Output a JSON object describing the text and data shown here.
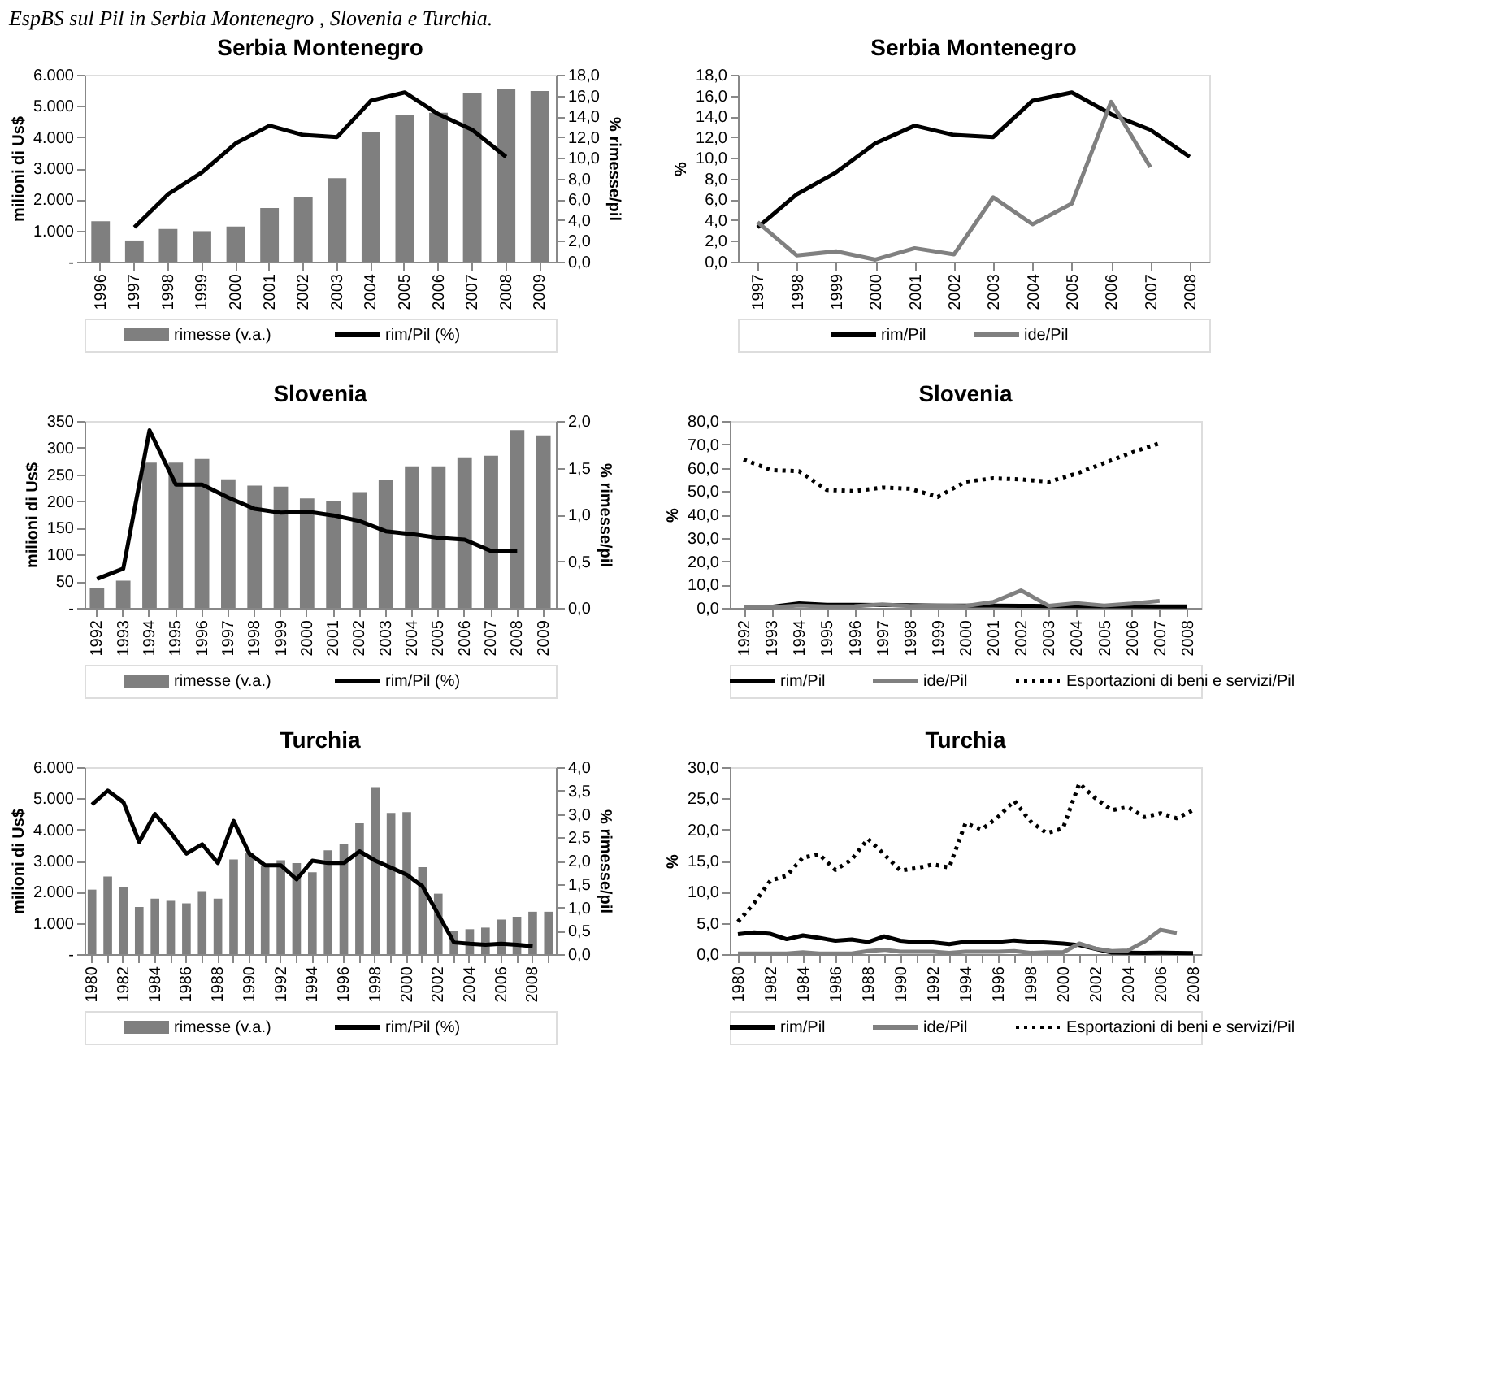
{
  "chart_data": [
    {
      "type": "bar",
      "title": "Serbia Montenegro",
      "ylabel": "milioni di Us$",
      "y2label": "% rimesse/pil",
      "legend": "bottom",
      "annotations": [
        "EspBS sul Pil in Serbia Montenegro , Slovenia e Turchia."
      ],
      "categories": [
        "1996",
        "1997",
        "1998",
        "1999",
        "2000",
        "2001",
        "2002",
        "2003",
        "2004",
        "2005",
        "2006",
        "2007",
        "2008",
        "2009"
      ],
      "ylim": [
        0,
        6000
      ],
      "yticks": [
        {
          "value": 0,
          "label": "-"
        },
        {
          "value": 1000,
          "label": "1.000"
        },
        {
          "value": 2000,
          "label": "2.000"
        },
        {
          "value": 3000,
          "label": "3.000"
        },
        {
          "value": 4000,
          "label": "4.000"
        },
        {
          "value": 5000,
          "label": "5.000"
        },
        {
          "value": 6000,
          "label": "6.000"
        }
      ],
      "y2lim": [
        0,
        18
      ],
      "y2ticks": [
        {
          "value": 0,
          "label": "0,0"
        },
        {
          "value": 2,
          "label": "2,0"
        },
        {
          "value": 4,
          "label": "4,0"
        },
        {
          "value": 6,
          "label": "6,0"
        },
        {
          "value": 8,
          "label": "8,0"
        },
        {
          "value": 10,
          "label": "10,0"
        },
        {
          "value": 12,
          "label": "12,0"
        },
        {
          "value": 14,
          "label": "14,0"
        },
        {
          "value": 16,
          "label": "16,0"
        },
        {
          "value": 18,
          "label": "18,0"
        }
      ],
      "series": [
        {
          "name": "rimesse (v.a.)",
          "type": "bar",
          "color": "#7f7f7f",
          "values": [
            1300,
            680,
            1050,
            980,
            1130,
            1720,
            2090,
            2680,
            4150,
            4700,
            4780,
            5400,
            5550,
            5480
          ]
        },
        {
          "name": "rim/Pil (%)",
          "type": "line",
          "axis": "y2",
          "color": "#000000",
          "values": [
            null,
            3.3,
            6.5,
            8.6,
            11.4,
            13.1,
            12.2,
            12.0,
            15.5,
            16.3,
            14.2,
            12.7,
            10.1,
            null
          ]
        }
      ]
    },
    {
      "type": "line",
      "title": "Serbia Montenegro",
      "ylabel": "%",
      "legend": "bottom",
      "categories": [
        "1997",
        "1998",
        "1999",
        "2000",
        "2001",
        "2002",
        "2003",
        "2004",
        "2005",
        "2006",
        "2007",
        "2008"
      ],
      "ylim": [
        0,
        18
      ],
      "yticks": [
        {
          "value": 0,
          "label": "0,0"
        },
        {
          "value": 2,
          "label": "2,0"
        },
        {
          "value": 4,
          "label": "4,0"
        },
        {
          "value": 6,
          "label": "6,0"
        },
        {
          "value": 8,
          "label": "8,0"
        },
        {
          "value": 10,
          "label": "10,0"
        },
        {
          "value": 12,
          "label": "12,0"
        },
        {
          "value": 14,
          "label": "14,0"
        },
        {
          "value": 16,
          "label": "16,0"
        },
        {
          "value": 18,
          "label": "18,0"
        }
      ],
      "series": [
        {
          "name": "rim/Pil",
          "color": "#000000",
          "values": [
            3.3,
            6.5,
            8.6,
            11.4,
            13.1,
            12.2,
            12.0,
            15.5,
            16.3,
            14.2,
            12.7,
            10.1
          ]
        },
        {
          "name": "ide/Pil",
          "color": "#808080",
          "values": [
            3.8,
            0.6,
            1.0,
            0.2,
            1.3,
            0.7,
            6.2,
            3.6,
            5.6,
            15.4,
            9.1,
            null
          ]
        }
      ]
    },
    {
      "type": "bar",
      "title": "Slovenia",
      "ylabel": "milioni di Us$",
      "y2label": "% rimesse/pil",
      "legend": "bottom",
      "categories": [
        "1992",
        "1993",
        "1994",
        "1995",
        "1996",
        "1997",
        "1998",
        "1999",
        "2000",
        "2001",
        "2002",
        "2003",
        "2004",
        "2005",
        "2006",
        "2007",
        "2008",
        "2009"
      ],
      "ylim": [
        0,
        350
      ],
      "yticks": [
        {
          "value": 0,
          "label": "-"
        },
        50,
        100,
        150,
        200,
        250,
        300,
        350
      ],
      "y2lim": [
        0,
        2
      ],
      "y2ticks": [
        {
          "value": 0,
          "label": "0,0"
        },
        {
          "value": 0.5,
          "label": "0,5"
        },
        {
          "value": 1,
          "label": "1,0"
        },
        {
          "value": 1.5,
          "label": "1,5"
        },
        {
          "value": 2,
          "label": "2,0"
        }
      ],
      "series": [
        {
          "name": "rimesse (v.a.)",
          "type": "bar",
          "color": "#7f7f7f",
          "values": [
            38,
            51,
            272,
            272,
            279,
            241,
            229,
            227,
            205,
            200,
            217,
            239,
            265,
            265,
            282,
            285,
            333,
            323
          ]
        },
        {
          "name": "rim/Pil (%)",
          "type": "line",
          "axis": "y2",
          "color": "#000000",
          "values": [
            0.31,
            0.42,
            1.9,
            1.32,
            1.32,
            1.18,
            1.06,
            1.02,
            1.03,
            0.99,
            0.93,
            0.82,
            0.79,
            0.75,
            0.73,
            0.61,
            0.61,
            null
          ]
        }
      ]
    },
    {
      "type": "line",
      "title": "Slovenia",
      "ylabel": "%",
      "legend": "bottom",
      "categories": [
        "1992",
        "1993",
        "1994",
        "1995",
        "1996",
        "1997",
        "1998",
        "1999",
        "2000",
        "2001",
        "2002",
        "2003",
        "2004",
        "2005",
        "2006",
        "2007",
        "2008"
      ],
      "ylim": [
        0,
        80
      ],
      "yticks": [
        {
          "value": 0,
          "label": "0,0"
        },
        {
          "value": 10,
          "label": "10,0"
        },
        {
          "value": 20,
          "label": "20,0"
        },
        {
          "value": 30,
          "label": "30,0"
        },
        {
          "value": 40,
          "label": "40,0"
        },
        {
          "value": 50,
          "label": "50,0"
        },
        {
          "value": 60,
          "label": "60,0"
        },
        {
          "value": 70,
          "label": "70,0"
        },
        {
          "value": 80,
          "label": "80,0"
        }
      ],
      "series": [
        {
          "name": "rim/Pil",
          "color": "#000000",
          "values": [
            0.3,
            0.4,
            1.9,
            1.3,
            1.3,
            1.2,
            1.1,
            1.0,
            1.0,
            1.0,
            0.9,
            0.8,
            0.8,
            0.7,
            0.7,
            0.6,
            0.6
          ]
        },
        {
          "name": "ide/Pil",
          "color": "#808080",
          "values": [
            0.2,
            0.3,
            1.0,
            0.6,
            0.7,
            1.5,
            0.8,
            1.0,
            0.8,
            2.5,
            7.5,
            0.9,
            2.0,
            1.0,
            1.8,
            3.0,
            null
          ]
        },
        {
          "name": "Esportazioni di beni e servizi/Pil",
          "color": "#000000",
          "line_style": "dotted",
          "values": [
            63.5,
            59,
            58.5,
            50.5,
            50,
            51.5,
            51,
            47.5,
            54,
            55.5,
            55,
            54,
            57.5,
            62,
            66.5,
            70.5,
            null
          ]
        }
      ]
    },
    {
      "type": "bar",
      "title": "Turchia",
      "ylabel": "milioni di Us$",
      "y2label": "% rimesse/pil",
      "legend": "bottom",
      "categories": [
        "1980",
        null,
        "1982",
        null,
        "1984",
        null,
        "1986",
        null,
        "1988",
        null,
        "1990",
        null,
        "1992",
        null,
        "1994",
        null,
        "1996",
        null,
        "1998",
        null,
        "2000",
        null,
        "2002",
        null,
        "2004",
        null,
        "2006",
        null,
        "2008",
        null
      ],
      "ylim": [
        0,
        6000
      ],
      "yticks": [
        {
          "value": 0,
          "label": "-"
        },
        {
          "value": 1000,
          "label": "1.000"
        },
        {
          "value": 2000,
          "label": "2.000"
        },
        {
          "value": 3000,
          "label": "3.000"
        },
        {
          "value": 4000,
          "label": "4.000"
        },
        {
          "value": 5000,
          "label": "5.000"
        },
        {
          "value": 6000,
          "label": "6.000"
        }
      ],
      "y2lim": [
        0,
        4
      ],
      "y2ticks": [
        {
          "value": 0,
          "label": "0,0"
        },
        {
          "value": 0.5,
          "label": "0,5"
        },
        {
          "value": 1,
          "label": "1,0"
        },
        {
          "value": 1.5,
          "label": "1,5"
        },
        {
          "value": 2,
          "label": "2,0"
        },
        {
          "value": 2.5,
          "label": "2,5"
        },
        {
          "value": 3,
          "label": "3,0"
        },
        {
          "value": 3.5,
          "label": "3,5"
        },
        {
          "value": 4,
          "label": "4,0"
        }
      ],
      "series": [
        {
          "name": "rimesse (v.a.)",
          "type": "bar",
          "color": "#7f7f7f",
          "values": [
            2070,
            2490,
            2140,
            1510,
            1780,
            1710,
            1630,
            2020,
            1780,
            3040,
            3240,
            2820,
            3010,
            2920,
            2630,
            3330,
            3540,
            4200,
            5360,
            4530,
            4560,
            2790,
            1940,
            730,
            800,
            850,
            1110,
            1200,
            1360,
            1360
          ]
        },
        {
          "name": "rim/Pil (%)",
          "type": "line",
          "axis": "y2",
          "color": "#000000",
          "values": [
            3.2,
            3.5,
            3.25,
            2.4,
            3.0,
            2.6,
            2.15,
            2.35,
            1.95,
            2.85,
            2.15,
            1.9,
            1.9,
            1.6,
            2.0,
            1.95,
            1.95,
            2.2,
            2.0,
            1.85,
            1.7,
            1.45,
            0.85,
            0.25,
            0.22,
            0.2,
            0.22,
            0.2,
            0.17,
            null
          ]
        }
      ]
    },
    {
      "type": "line",
      "title": "Turchia",
      "ylabel": "%",
      "legend": "bottom",
      "categories": [
        "1980",
        null,
        "1982",
        null,
        "1984",
        null,
        "1986",
        null,
        "1988",
        null,
        "1990",
        null,
        "1992",
        null,
        "1994",
        null,
        "1996",
        null,
        "1998",
        null,
        "2000",
        null,
        "2002",
        null,
        "2004",
        null,
        "2006",
        null,
        "2008"
      ],
      "ylim": [
        0,
        30
      ],
      "yticks": [
        {
          "value": 0,
          "label": "0,0"
        },
        {
          "value": 5,
          "label": "5,0"
        },
        {
          "value": 10,
          "label": "10,0"
        },
        {
          "value": 15,
          "label": "15,0"
        },
        {
          "value": 20,
          "label": "20,0"
        },
        {
          "value": 25,
          "label": "25,0"
        },
        {
          "value": 30,
          "label": "30,0"
        }
      ],
      "series": [
        {
          "name": "rim/Pil",
          "color": "#000000",
          "values": [
            3.2,
            3.5,
            3.25,
            2.4,
            3.0,
            2.6,
            2.15,
            2.35,
            1.95,
            2.85,
            2.15,
            1.9,
            1.9,
            1.6,
            2.0,
            1.95,
            1.95,
            2.2,
            2.0,
            1.85,
            1.7,
            1.45,
            0.85,
            0.25,
            0.22,
            0.2,
            0.22,
            0.2,
            0.17
          ]
        },
        {
          "name": "ide/Pil",
          "color": "#808080",
          "values": [
            0.1,
            0.1,
            0.1,
            0.1,
            0.3,
            0.1,
            0.1,
            0.1,
            0.5,
            0.7,
            0.4,
            0.4,
            0.4,
            0.2,
            0.4,
            0.4,
            0.4,
            0.5,
            0.2,
            0.3,
            0.3,
            1.7,
            0.9,
            0.5,
            0.6,
            2.0,
            3.9,
            3.4,
            null
          ]
        },
        {
          "name": "Esportazioni di beni e servizi/Pil",
          "color": "#000000",
          "line_style": "dotted",
          "values": [
            5.2,
            8.2,
            11.8,
            12.6,
            15.5,
            16.0,
            13.5,
            15.2,
            18.5,
            16.0,
            13.4,
            13.8,
            14.4,
            13.9,
            21.0,
            20.0,
            22.0,
            24.6,
            21.3,
            19.4,
            20.2,
            27.4,
            25.0,
            23.1,
            23.6,
            22.0,
            22.6,
            21.8,
            23.1
          ]
        }
      ]
    }
  ]
}
